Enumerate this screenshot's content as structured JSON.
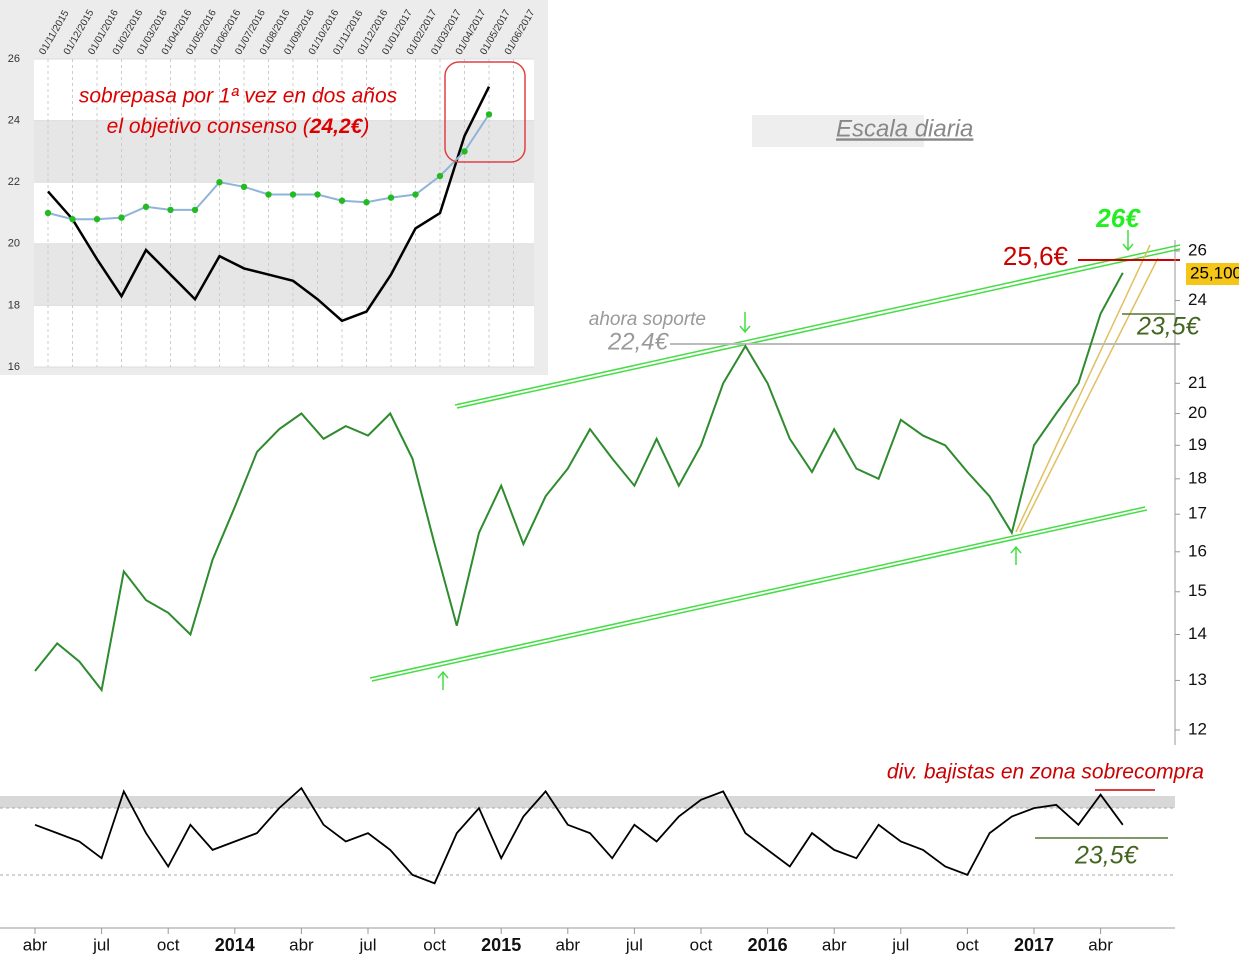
{
  "chart_data": [
    {
      "type": "line",
      "log_scale": true,
      "categories": [
        "abr",
        null,
        null,
        "jul",
        null,
        null,
        "oct",
        null,
        null,
        "2014",
        null,
        null,
        "abr",
        null,
        null,
        "jul",
        null,
        null,
        "oct",
        null,
        null,
        "2015",
        null,
        null,
        "abr",
        null,
        null,
        "jul",
        null,
        null,
        "oct",
        null,
        null,
        "2016",
        null,
        null,
        "abr",
        null,
        null,
        "jul",
        null,
        null,
        "oct",
        null,
        null,
        "2017",
        null,
        null,
        "abr",
        null
      ],
      "series": [
        {
          "color": "#2e8b2e",
          "values": [
            13.2,
            13.8,
            13.4,
            12.8,
            15.5,
            14.8,
            14.5,
            14.0,
            15.8,
            17.2,
            18.8,
            19.5,
            20.0,
            19.2,
            19.6,
            19.3,
            20.0,
            18.6,
            16.2,
            14.2,
            16.5,
            17.8,
            16.2,
            17.5,
            18.3,
            19.5,
            18.6,
            17.8,
            19.2,
            17.8,
            19.0,
            21.0,
            22.3,
            21.0,
            19.2,
            18.2,
            19.5,
            18.3,
            18.0,
            19.8,
            19.3,
            19.0,
            18.2,
            17.5,
            16.5,
            19.0,
            20.0,
            21.0,
            23.5,
            25.1
          ]
        }
      ],
      "ylim": [
        12,
        26
      ],
      "yticks": [
        12,
        13,
        14,
        15,
        16,
        17,
        18,
        19,
        20,
        21,
        24,
        26
      ],
      "annotations": [
        "Escala diaria",
        "26€",
        "25,6€",
        "ahora soporte",
        "22,4€",
        "23,5€",
        "div. bajistas en zona sobrecompra",
        "23,5€",
        "25,100"
      ]
    },
    {
      "type": "line",
      "series": [
        {
          "color": "#000000",
          "values": [
            60,
            55,
            50,
            40,
            80,
            55,
            35,
            60,
            45,
            50,
            55,
            70,
            82,
            60,
            50,
            55,
            45,
            30,
            25,
            55,
            70,
            40,
            65,
            80,
            60,
            55,
            40,
            60,
            50,
            65,
            75,
            80,
            55,
            45,
            35,
            55,
            45,
            40,
            60,
            50,
            45,
            35,
            30,
            55,
            65,
            70,
            72,
            60,
            78,
            60
          ]
        }
      ],
      "ylim": [
        0,
        100
      ]
    },
    {
      "type": "line",
      "categories": [
        "01/11/2015",
        "01/12/2015",
        "01/01/2016",
        "01/02/2016",
        "01/03/2016",
        "01/04/2016",
        "01/05/2016",
        "01/06/2016",
        "01/07/2016",
        "01/08/2016",
        "01/09/2016",
        "01/10/2016",
        "01/11/2016",
        "01/12/2016",
        "01/01/2017",
        "01/02/2017",
        "01/03/2017",
        "01/04/2017",
        "01/05/2017",
        "01/06/2017"
      ],
      "series": [
        {
          "color": "#000000",
          "values": [
            21.7,
            20.8,
            19.5,
            18.3,
            19.8,
            19.0,
            18.2,
            19.6,
            19.2,
            19.0,
            18.8,
            18.2,
            17.5,
            17.8,
            19.0,
            20.5,
            21.0,
            23.5,
            25.1,
            null
          ]
        },
        {
          "color": "#8fb4d9",
          "marker_color": "#22bb22",
          "values": [
            21.0,
            20.8,
            20.8,
            20.85,
            21.2,
            21.1,
            21.1,
            22.0,
            21.85,
            21.6,
            21.6,
            21.6,
            21.4,
            21.35,
            21.5,
            21.6,
            22.2,
            23.0,
            24.2,
            null
          ]
        }
      ],
      "ylim": [
        16,
        26
      ],
      "yticks": [
        16,
        18,
        20,
        22,
        24,
        26
      ],
      "annotations": [
        "sobrepasa por 1ª vez en dos años",
        "el objetivo consenso (",
        "24,2€",
        ")"
      ]
    }
  ]
}
